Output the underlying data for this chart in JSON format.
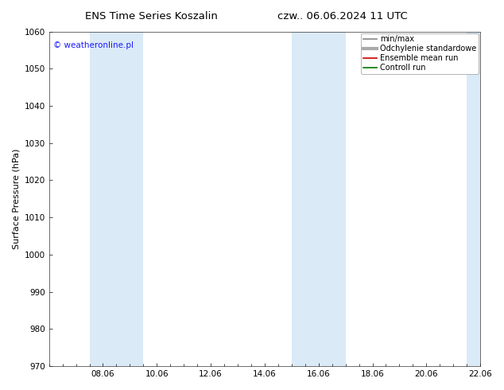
{
  "title_left": "ENS Time Series Koszalin",
  "title_right": "czw.. 06.06.2024 11 UTC",
  "ylabel": "Surface Pressure (hPa)",
  "ylim": [
    970,
    1060
  ],
  "yticks": [
    970,
    980,
    990,
    1000,
    1010,
    1020,
    1030,
    1040,
    1050,
    1060
  ],
  "xtick_labels": [
    "08.06",
    "10.06",
    "12.06",
    "14.06",
    "16.06",
    "18.06",
    "20.06",
    "22.06"
  ],
  "xtick_positions": [
    2,
    4,
    6,
    8,
    10,
    12,
    14,
    16
  ],
  "xlim": [
    0,
    16
  ],
  "shaded_bands": [
    {
      "start": 1.5,
      "end": 3.5
    },
    {
      "start": 9.0,
      "end": 11.0
    },
    {
      "start": 15.5,
      "end": 16.0
    }
  ],
  "shade_color": "#daeaf7",
  "watermark_text": "© weatheronline.pl",
  "watermark_color": "#1a1aff",
  "legend_entries": [
    {
      "label": "min/max",
      "color": "#888888",
      "lw": 1.2,
      "ls": "-"
    },
    {
      "label": "Odchylenie standardowe",
      "color": "#aaaaaa",
      "lw": 3,
      "ls": "-"
    },
    {
      "label": "Ensemble mean run",
      "color": "#cc0000",
      "lw": 1.2,
      "ls": "-"
    },
    {
      "label": "Controll run",
      "color": "#007700",
      "lw": 1.2,
      "ls": "-"
    }
  ],
  "background_color": "#ffffff",
  "plot_background": "#ffffff",
  "title_fontsize": 9.5,
  "ylabel_fontsize": 8,
  "tick_fontsize": 7.5,
  "watermark_fontsize": 7.5,
  "legend_fontsize": 7
}
